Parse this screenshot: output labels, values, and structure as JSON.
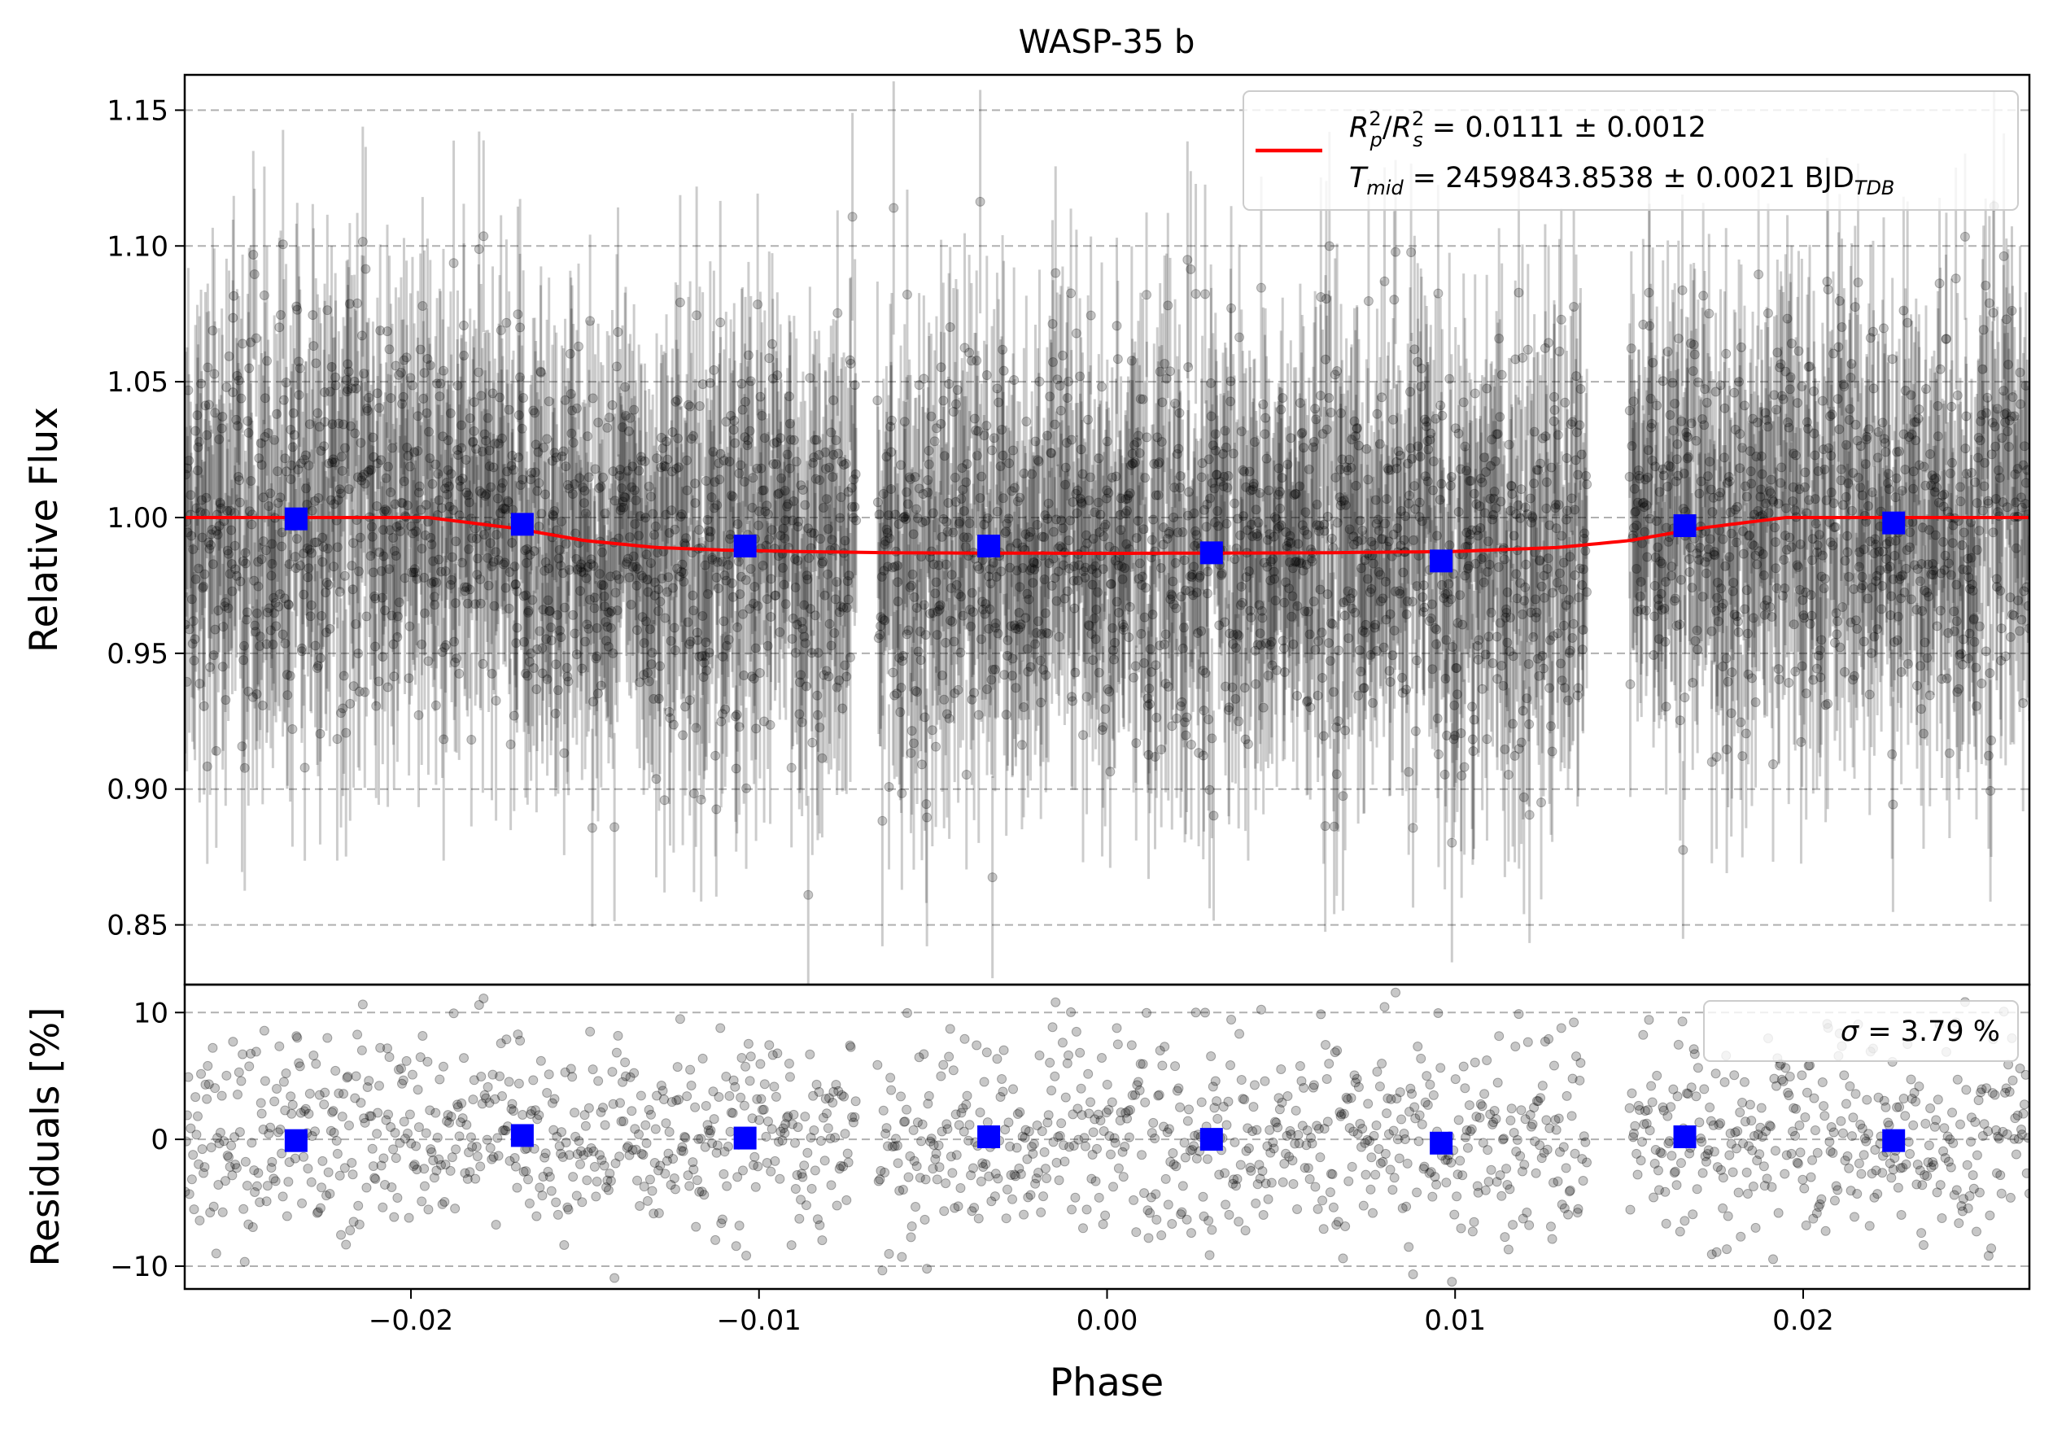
{
  "chart_data": [
    {
      "type": "scatter",
      "title": "WASP-35 b",
      "xlabel": "",
      "ylabel": "Relative Flux",
      "xlim": [
        -0.0265,
        0.0265
      ],
      "ylim": [
        0.828,
        1.163
      ],
      "yticks": [
        {
          "value": 0.85,
          "label": "0.85"
        },
        {
          "value": 0.9,
          "label": "0.90"
        },
        {
          "value": 0.95,
          "label": "0.95"
        },
        {
          "value": 1.0,
          "label": "1.00"
        },
        {
          "value": 1.05,
          "label": "1.05"
        },
        {
          "value": 1.1,
          "label": "1.10"
        },
        {
          "value": 1.15,
          "label": "1.15"
        }
      ],
      "grid": "horizontal dashed",
      "legend_placement": "top-right",
      "legend": {
        "ratio_value": " = 0.0111 ± 0.0012",
        "tmid_value": " = 2459843.8538 ± 0.0021 BJD",
        "tmid_unit_sub": "TDB"
      },
      "model_line": {
        "color": "#ff0000",
        "x": [
          -0.0265,
          -0.0195,
          -0.017,
          -0.015,
          -0.013,
          -0.011,
          -0.009,
          -0.006,
          0.0,
          0.006,
          0.01,
          0.013,
          0.015,
          0.017,
          0.0195,
          0.0265
        ],
        "y": [
          1.0,
          1.0,
          0.996,
          0.9915,
          0.989,
          0.988,
          0.9875,
          0.987,
          0.9868,
          0.987,
          0.9875,
          0.989,
          0.9915,
          0.996,
          1.0,
          1.0
        ]
      },
      "binned_points": {
        "color": "#0000ff",
        "x": [
          -0.0233,
          -0.0168,
          -0.0104,
          -0.0034,
          0.003,
          0.0096,
          0.0166,
          0.0226
        ],
        "y": [
          0.9995,
          0.9975,
          0.9895,
          0.9895,
          0.987,
          0.984,
          0.997,
          0.998
        ]
      },
      "raw_points": {
        "color": "#000000",
        "coverage_x": [
          [
            -0.0265,
            -0.0072
          ],
          [
            -0.0066,
            0.0138
          ],
          [
            0.015,
            0.0265
          ]
        ],
        "typical_scatter": 0.038,
        "typical_error": 0.038
      }
    },
    {
      "type": "scatter",
      "title": "",
      "xlabel": "Phase",
      "ylabel": "Residuals [%]",
      "xlim": [
        -0.0265,
        0.0265
      ],
      "ylim": [
        -11.8,
        12.2
      ],
      "xticks": [
        {
          "value": -0.02,
          "label": "−0.02"
        },
        {
          "value": -0.01,
          "label": "−0.01"
        },
        {
          "value": 0.0,
          "label": "0.00"
        },
        {
          "value": 0.01,
          "label": "0.01"
        },
        {
          "value": 0.02,
          "label": "0.02"
        }
      ],
      "yticks": [
        {
          "value": -10,
          "label": "−10"
        },
        {
          "value": 0,
          "label": "0"
        },
        {
          "value": 10,
          "label": "10"
        }
      ],
      "grid": "horizontal dashed",
      "legend_placement": "top-right",
      "legend": {
        "sigma_value": " = 3.79 %"
      },
      "binned_points": {
        "color": "#0000ff",
        "x": [
          -0.0233,
          -0.0168,
          -0.0104,
          -0.0034,
          0.003,
          0.0096,
          0.0166,
          0.0226
        ],
        "y": [
          -0.1,
          0.3,
          0.1,
          0.2,
          0.0,
          -0.3,
          0.2,
          -0.1
        ]
      },
      "raw_points": {
        "color": "#000000",
        "typical_scatter": 3.79
      }
    }
  ]
}
